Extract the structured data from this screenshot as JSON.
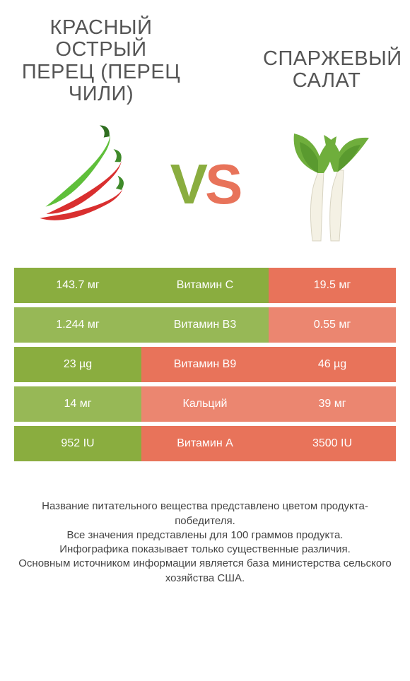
{
  "colors": {
    "left_primary": "#8aad3f",
    "left_alt": "#97b856",
    "right_primary": "#e8735a",
    "right_alt": "#eb8670",
    "text_on_color": "#ffffff",
    "title_color": "#555555",
    "footer_color": "#444444",
    "bg": "#ffffff"
  },
  "titles": {
    "left": "Красный острый перец (перец чили)",
    "right": "Спаржевый салат"
  },
  "vs": {
    "v": "V",
    "s": "S"
  },
  "nutrients": [
    {
      "name": "Витамин C",
      "left": "143.7 мг",
      "right": "19.5 мг",
      "winner": "left"
    },
    {
      "name": "Витамин B3",
      "left": "1.244 мг",
      "right": "0.55 мг",
      "winner": "left"
    },
    {
      "name": "Витамин B9",
      "left": "23 µg",
      "right": "46 µg",
      "winner": "right"
    },
    {
      "name": "Кальций",
      "left": "14 мг",
      "right": "39 мг",
      "winner": "right"
    },
    {
      "name": "Витамин A",
      "left": "952 IU",
      "right": "3500 IU",
      "winner": "right"
    }
  ],
  "footer_lines": [
    "Название питательного вещества представлено цветом продукта-победителя.",
    "Все значения представлены для 100 граммов продукта.",
    "Инфографика показывает только существенные различия.",
    "Основным источником информации является база министерства сельского хозяйства США."
  ]
}
